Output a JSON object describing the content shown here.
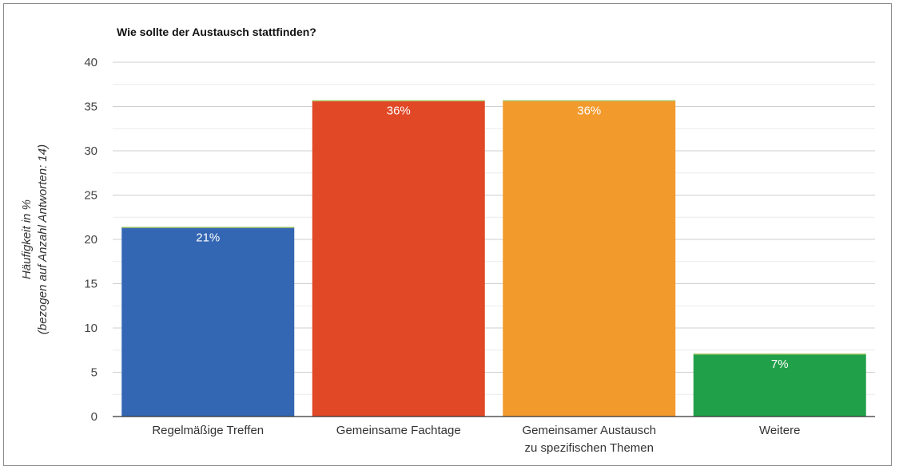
{
  "chart_data": {
    "type": "bar",
    "title": "Wie sollte der Austausch stattfinden?",
    "ylabel_lines": [
      "Häufigkeit in %",
      "(bezogen auf Anzahl Antworten: 14)"
    ],
    "xlabel": "",
    "ylim": [
      0,
      40
    ],
    "yticks": [
      0,
      5,
      10,
      15,
      20,
      25,
      30,
      35,
      40
    ],
    "grid": true,
    "categories": [
      [
        "Regelmäßige Treffen"
      ],
      [
        "Gemeinsame Fachtage"
      ],
      [
        "Gemeinsamer Austausch",
        "zu spezifischen Themen"
      ],
      [
        "Weitere"
      ]
    ],
    "values": [
      21.4,
      35.7,
      35.7,
      7.1
    ],
    "data_labels": [
      "21%",
      "36%",
      "36%",
      "7%"
    ],
    "colors": [
      "#3366b3",
      "#e04826",
      "#f39a2d",
      "#21a04a"
    ],
    "label_colors": [
      "#ffffff",
      "#ffffff",
      "#5a5a5a",
      "#ffffff"
    ]
  }
}
